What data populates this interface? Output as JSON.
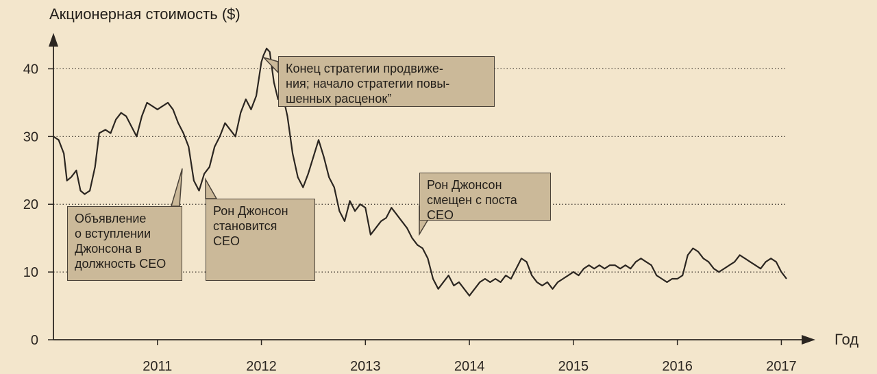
{
  "chart_data": {
    "type": "line",
    "ylabel": "Акционерная стоимость ($)",
    "xlabel": "Год",
    "ylim": [
      0,
      45
    ],
    "xlim": [
      2010.0,
      2017.05
    ],
    "y_ticks": [
      0,
      10,
      20,
      30,
      40
    ],
    "x_ticks": [
      2011,
      2012,
      2013,
      2014,
      2015,
      2016,
      2017
    ],
    "x_tick_labels": [
      "2011",
      "2012",
      "2013",
      "2014",
      "2015",
      "2016",
      "2017"
    ],
    "grid": "horizontal dotted",
    "line_color": "#2b2621",
    "series": [
      {
        "x": [
          2010.0,
          2010.05,
          2010.1,
          2010.13,
          2010.17,
          2010.22,
          2010.26,
          2010.3,
          2010.35,
          2010.4,
          2010.44,
          2010.5,
          2010.55,
          2010.6,
          2010.65,
          2010.7,
          2010.75,
          2010.8,
          2010.85,
          2010.9,
          2010.95,
          2011.0,
          2011.05,
          2011.1,
          2011.15,
          2011.2,
          2011.25,
          2011.3,
          2011.35,
          2011.4,
          2011.45,
          2011.5,
          2011.55,
          2011.6,
          2011.65,
          2011.7,
          2011.75,
          2011.8,
          2011.85,
          2011.9,
          2011.95,
          2012.0,
          2012.02,
          2012.05,
          2012.08,
          2012.12,
          2012.16,
          2012.2,
          2012.25,
          2012.3,
          2012.35,
          2012.4,
          2012.45,
          2012.5,
          2012.55,
          2012.6,
          2012.65,
          2012.7,
          2012.75,
          2012.8,
          2012.85,
          2012.9,
          2012.95,
          2013.0,
          2013.05,
          2013.1,
          2013.15,
          2013.2,
          2013.25,
          2013.3,
          2013.35,
          2013.4,
          2013.45,
          2013.5,
          2013.55,
          2013.6,
          2013.65,
          2013.7,
          2013.75,
          2013.8,
          2013.85,
          2013.9,
          2013.95,
          2014.0,
          2014.05,
          2014.1,
          2014.15,
          2014.2,
          2014.25,
          2014.3,
          2014.35,
          2014.4,
          2014.45,
          2014.5,
          2014.55,
          2014.6,
          2014.65,
          2014.7,
          2014.75,
          2014.8,
          2014.85,
          2014.9,
          2014.95,
          2015.0,
          2015.05,
          2015.1,
          2015.15,
          2015.2,
          2015.25,
          2015.3,
          2015.35,
          2015.4,
          2015.45,
          2015.5,
          2015.55,
          2015.6,
          2015.65,
          2015.7,
          2015.75,
          2015.8,
          2015.85,
          2015.9,
          2015.95,
          2016.0,
          2016.05,
          2016.1,
          2016.15,
          2016.2,
          2016.25,
          2016.3,
          2016.35,
          2016.4,
          2016.45,
          2016.5,
          2016.55,
          2016.6,
          2016.65,
          2016.7,
          2016.75,
          2016.8,
          2016.85,
          2016.9,
          2016.95,
          2017.0,
          2017.05
        ],
        "values": [
          30.0,
          29.5,
          27.5,
          23.5,
          24.0,
          25.0,
          22.0,
          21.5,
          22.0,
          25.5,
          30.5,
          31.0,
          30.5,
          32.5,
          33.5,
          33.0,
          31.5,
          30.0,
          33.0,
          35.0,
          34.5,
          34.0,
          34.5,
          35.0,
          34.0,
          32.0,
          30.5,
          28.5,
          23.5,
          22.0,
          24.5,
          25.5,
          28.5,
          30.0,
          32.0,
          31.0,
          30.0,
          33.5,
          35.5,
          34.0,
          36.0,
          41.0,
          42.0,
          43.0,
          42.5,
          38.0,
          35.5,
          36.5,
          33.0,
          27.5,
          24.0,
          22.5,
          24.5,
          27.0,
          29.5,
          27.0,
          24.0,
          22.5,
          19.0,
          17.5,
          20.5,
          19.0,
          20.0,
          19.5,
          15.5,
          16.5,
          17.5,
          18.0,
          19.5,
          18.5,
          17.5,
          16.5,
          15.0,
          14.0,
          13.5,
          12.0,
          9.0,
          7.5,
          8.5,
          9.5,
          8.0,
          8.5,
          7.5,
          6.5,
          7.5,
          8.5,
          9.0,
          8.5,
          9.0,
          8.5,
          9.5,
          9.0,
          10.5,
          12.0,
          11.5,
          9.5,
          8.5,
          8.0,
          8.5,
          7.5,
          8.5,
          9.0,
          9.5,
          10.0,
          9.5,
          10.5,
          11.0,
          10.5,
          11.0,
          10.5,
          11.0,
          11.0,
          10.5,
          11.0,
          10.5,
          11.5,
          12.0,
          11.5,
          11.0,
          9.5,
          9.0,
          8.5,
          9.0,
          9.0,
          9.5,
          12.5,
          13.5,
          13.0,
          12.0,
          11.5,
          10.5,
          10.0,
          10.5,
          11.0,
          11.5,
          12.5,
          12.0,
          11.5,
          11.0,
          10.5,
          11.5,
          12.0,
          11.5,
          10.0,
          9.0
        ]
      }
    ],
    "annotations": [
      {
        "text": [
          "Объявление",
          "о вступлении",
          "Джонсона в",
          "должность CEO"
        ],
        "x": 2011.5
      },
      {
        "text": [
          "Рон Джонсон",
          "становится",
          "CEO"
        ],
        "x": 2011.7
      },
      {
        "text": [
          "Конец стратегии продвиже-",
          "ния; начало стратегии повы-",
          "шенных расценок”"
        ],
        "x": 2012.15
      },
      {
        "text": [
          "Рон Джонсон",
          "смещен с поста",
          "CEO"
        ],
        "x": 2013.7
      }
    ]
  }
}
